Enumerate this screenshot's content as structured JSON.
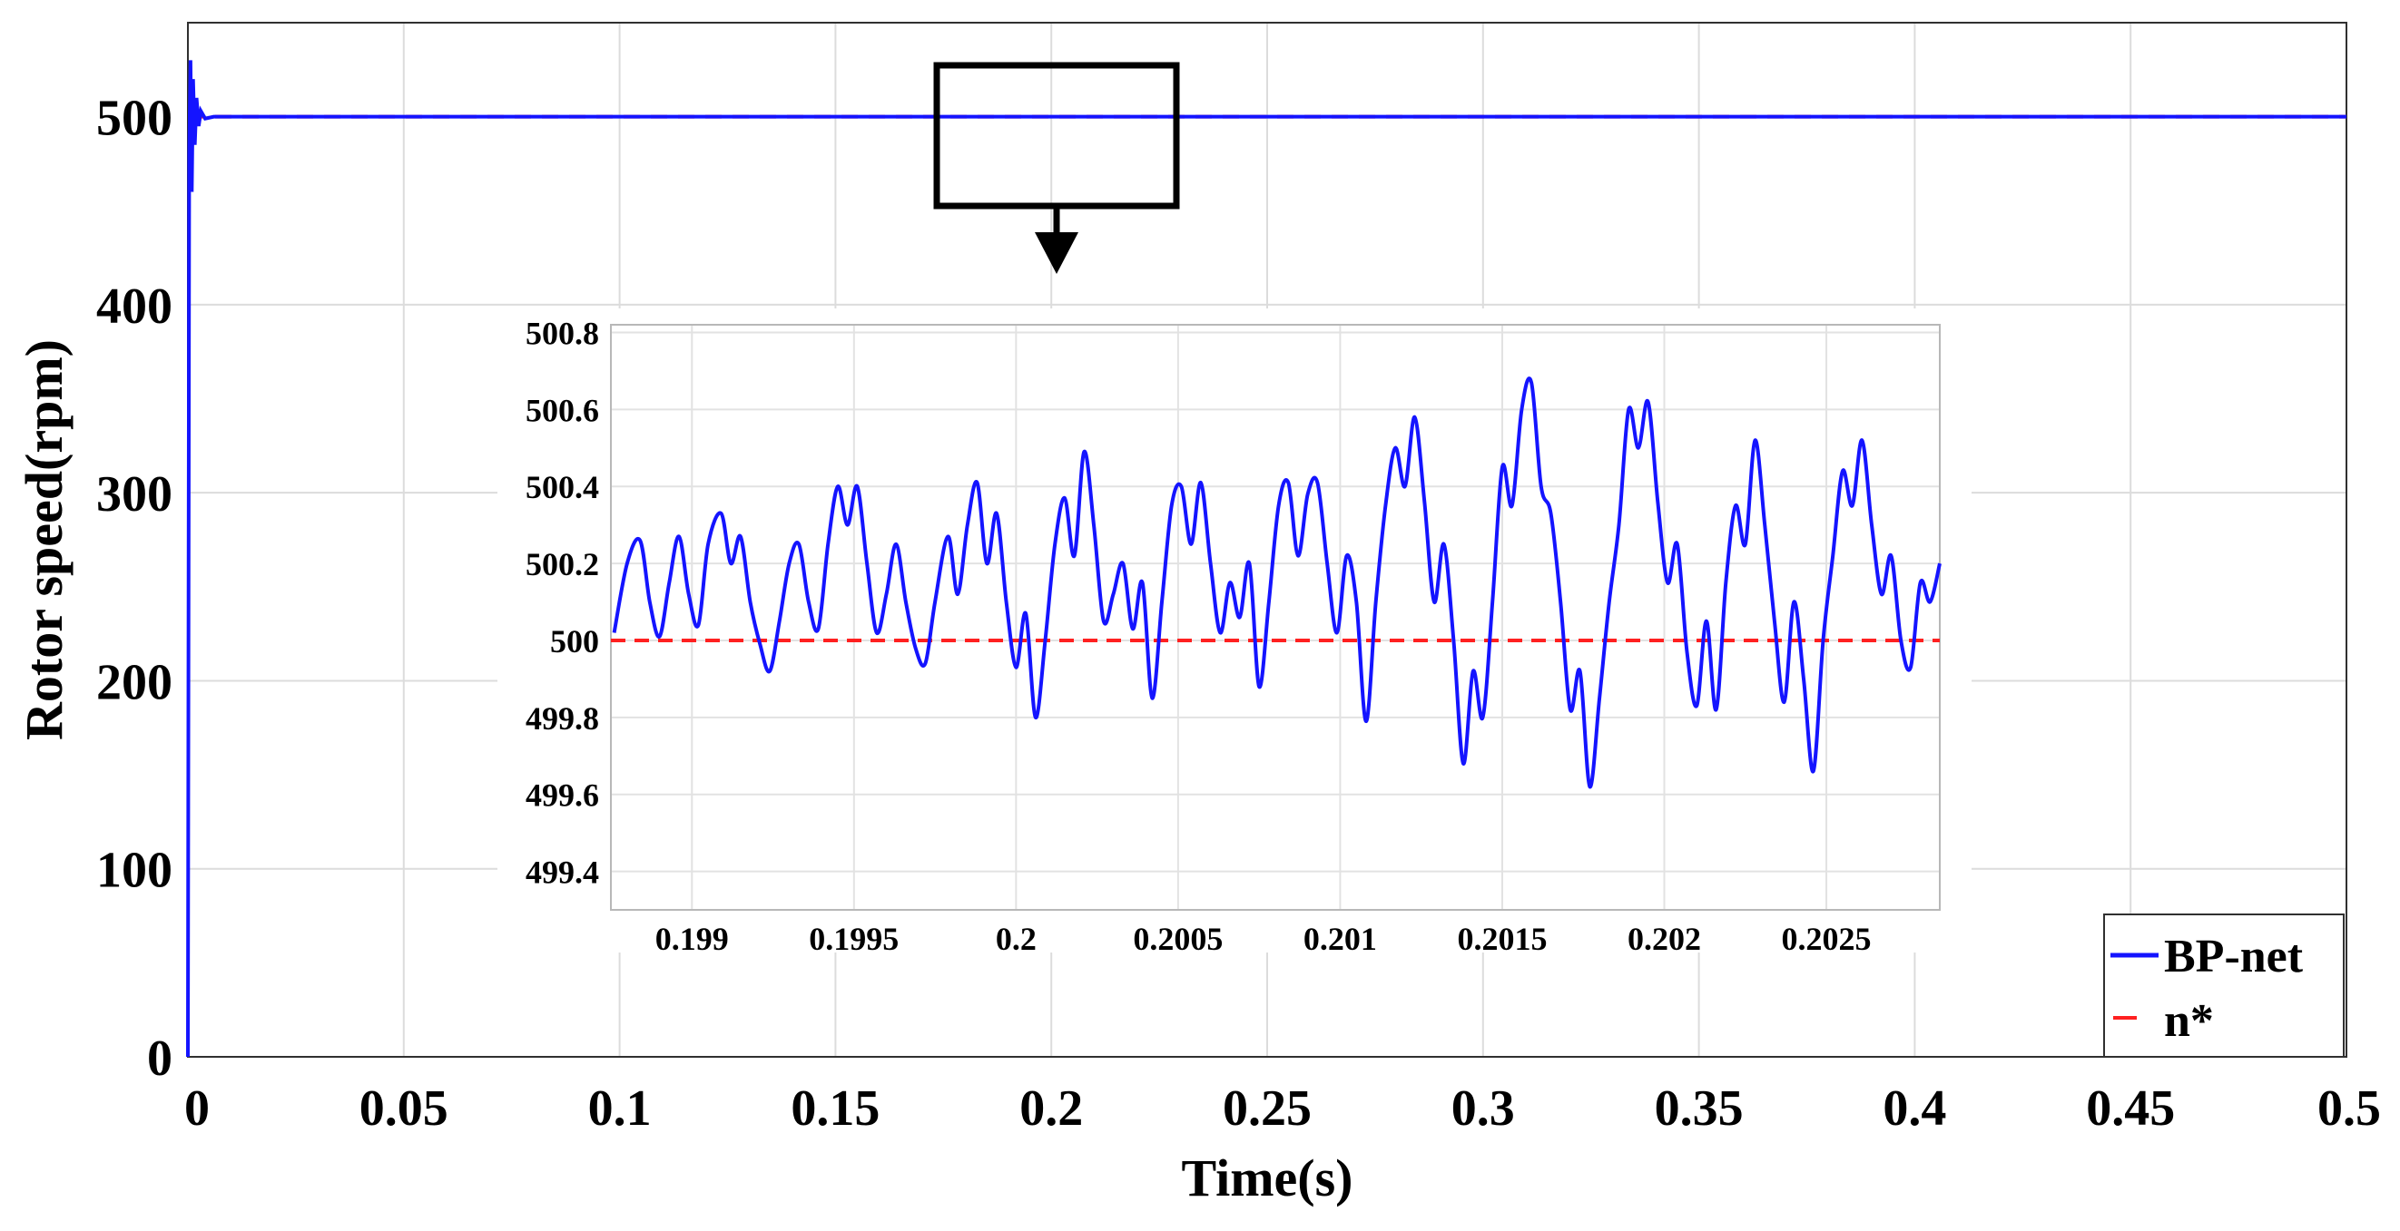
{
  "chart_data": {
    "type": "line",
    "xlabel": "Time(s)",
    "ylabel": "Rotor speed(rpm)",
    "xlim": [
      0,
      0.5
    ],
    "ylim": [
      0,
      550
    ],
    "x_ticks": [
      "0",
      "0.05",
      "0.1",
      "0.15",
      "0.2",
      "0.25",
      "0.3",
      "0.35",
      "0.4",
      "0.45",
      "0.5"
    ],
    "y_ticks": [
      "0",
      "100",
      "200",
      "300",
      "400",
      "500"
    ],
    "grid": true,
    "legend_position": "bottom-right",
    "colors": {
      "bp_net": "#1414ff",
      "reference": "#ff2020"
    },
    "series": [
      {
        "name": "BP-net",
        "style": "solid",
        "points": [
          [
            0,
            0
          ],
          [
            0.0003,
            480
          ],
          [
            0.0006,
            530
          ],
          [
            0.0009,
            460
          ],
          [
            0.0012,
            520
          ],
          [
            0.0016,
            485
          ],
          [
            0.002,
            510
          ],
          [
            0.0025,
            495
          ],
          [
            0.003,
            503
          ],
          [
            0.004,
            499
          ],
          [
            0.006,
            500
          ],
          [
            0.5,
            500
          ]
        ]
      },
      {
        "name": "n*",
        "style": "dashed",
        "points": [
          [
            0,
            500
          ],
          [
            0.5,
            500
          ]
        ]
      }
    ],
    "inset": {
      "xlim": [
        0.19875,
        0.20285
      ],
      "ylim": [
        499.3,
        500.82
      ],
      "x_ticks": [
        "0.199",
        "0.1995",
        "0.2",
        "0.2005",
        "0.201",
        "0.2015",
        "0.202",
        "0.2025"
      ],
      "y_ticks": [
        "499.4",
        "499.6",
        "499.8",
        "500",
        "500.2",
        "500.4",
        "500.6",
        "500.8"
      ],
      "reference_value": 500,
      "bp_net_points": [
        [
          0.19876,
          500.02
        ],
        [
          0.1988,
          500.2
        ],
        [
          0.19884,
          500.26
        ],
        [
          0.19887,
          500.1
        ],
        [
          0.1989,
          500.01
        ],
        [
          0.19893,
          500.15
        ],
        [
          0.19896,
          500.27
        ],
        [
          0.19899,
          500.12
        ],
        [
          0.19902,
          500.04
        ],
        [
          0.19905,
          500.25
        ],
        [
          0.19909,
          500.33
        ],
        [
          0.19912,
          500.2
        ],
        [
          0.19915,
          500.27
        ],
        [
          0.19918,
          500.1
        ],
        [
          0.19921,
          499.99
        ],
        [
          0.19924,
          499.92
        ],
        [
          0.19927,
          500.05
        ],
        [
          0.1993,
          500.2
        ],
        [
          0.19933,
          500.25
        ],
        [
          0.19936,
          500.1
        ],
        [
          0.19939,
          500.03
        ],
        [
          0.19942,
          500.25
        ],
        [
          0.19945,
          500.4
        ],
        [
          0.19948,
          500.3
        ],
        [
          0.19951,
          500.4
        ],
        [
          0.19954,
          500.2
        ],
        [
          0.19957,
          500.02
        ],
        [
          0.1996,
          500.12
        ],
        [
          0.19963,
          500.25
        ],
        [
          0.19966,
          500.1
        ],
        [
          0.19969,
          499.98
        ],
        [
          0.19972,
          499.94
        ],
        [
          0.19975,
          500.1
        ],
        [
          0.19979,
          500.27
        ],
        [
          0.19982,
          500.12
        ],
        [
          0.19985,
          500.3
        ],
        [
          0.19988,
          500.41
        ],
        [
          0.19991,
          500.2
        ],
        [
          0.19994,
          500.33
        ],
        [
          0.19997,
          500.1
        ],
        [
          0.2,
          499.93
        ],
        [
          0.20003,
          500.07
        ],
        [
          0.20006,
          499.8
        ],
        [
          0.20009,
          500.0
        ],
        [
          0.20012,
          500.25
        ],
        [
          0.20015,
          500.37
        ],
        [
          0.20018,
          500.22
        ],
        [
          0.20021,
          500.49
        ],
        [
          0.20024,
          500.3
        ],
        [
          0.20027,
          500.05
        ],
        [
          0.2003,
          500.12
        ],
        [
          0.20033,
          500.2
        ],
        [
          0.20036,
          500.03
        ],
        [
          0.20039,
          500.15
        ],
        [
          0.20042,
          499.85
        ],
        [
          0.20045,
          500.1
        ],
        [
          0.20048,
          500.35
        ],
        [
          0.20051,
          500.4
        ],
        [
          0.20054,
          500.25
        ],
        [
          0.20057,
          500.41
        ],
        [
          0.2006,
          500.2
        ],
        [
          0.20063,
          500.02
        ],
        [
          0.20066,
          500.15
        ],
        [
          0.20069,
          500.06
        ],
        [
          0.20072,
          500.2
        ],
        [
          0.20075,
          499.88
        ],
        [
          0.20078,
          500.1
        ],
        [
          0.20081,
          500.35
        ],
        [
          0.20084,
          500.41
        ],
        [
          0.20087,
          500.22
        ],
        [
          0.2009,
          500.38
        ],
        [
          0.20093,
          500.41
        ],
        [
          0.20096,
          500.2
        ],
        [
          0.20099,
          500.02
        ],
        [
          0.20102,
          500.22
        ],
        [
          0.20105,
          500.1
        ],
        [
          0.20108,
          499.79
        ],
        [
          0.20111,
          500.1
        ],
        [
          0.20114,
          500.35
        ],
        [
          0.20117,
          500.5
        ],
        [
          0.2012,
          500.4
        ],
        [
          0.20123,
          500.58
        ],
        [
          0.20126,
          500.36
        ],
        [
          0.20129,
          500.1
        ],
        [
          0.20132,
          500.25
        ],
        [
          0.20135,
          500.0
        ],
        [
          0.20138,
          499.68
        ],
        [
          0.20141,
          499.92
        ],
        [
          0.20144,
          499.8
        ],
        [
          0.20147,
          500.1
        ],
        [
          0.2015,
          500.45
        ],
        [
          0.20153,
          500.35
        ],
        [
          0.20156,
          500.6
        ],
        [
          0.20159,
          500.67
        ],
        [
          0.20162,
          500.4
        ],
        [
          0.20165,
          500.33
        ],
        [
          0.20168,
          500.1
        ],
        [
          0.20171,
          499.82
        ],
        [
          0.20174,
          499.92
        ],
        [
          0.20177,
          499.62
        ],
        [
          0.2018,
          499.85
        ],
        [
          0.20183,
          500.1
        ],
        [
          0.20186,
          500.3
        ],
        [
          0.20189,
          500.6
        ],
        [
          0.20192,
          500.5
        ],
        [
          0.20195,
          500.62
        ],
        [
          0.20198,
          500.36
        ],
        [
          0.20201,
          500.15
        ],
        [
          0.20204,
          500.25
        ],
        [
          0.20207,
          499.97
        ],
        [
          0.2021,
          499.83
        ],
        [
          0.20213,
          500.05
        ],
        [
          0.20216,
          499.82
        ],
        [
          0.20219,
          500.15
        ],
        [
          0.20222,
          500.35
        ],
        [
          0.20225,
          500.25
        ],
        [
          0.20228,
          500.52
        ],
        [
          0.20231,
          500.3
        ],
        [
          0.20234,
          500.05
        ],
        [
          0.20237,
          499.84
        ],
        [
          0.2024,
          500.1
        ],
        [
          0.20243,
          499.9
        ],
        [
          0.20246,
          499.66
        ],
        [
          0.20249,
          500.0
        ],
        [
          0.20252,
          500.22
        ],
        [
          0.20255,
          500.44
        ],
        [
          0.20258,
          500.35
        ],
        [
          0.20261,
          500.52
        ],
        [
          0.20264,
          500.3
        ],
        [
          0.20267,
          500.12
        ],
        [
          0.2027,
          500.22
        ],
        [
          0.20273,
          500.0
        ],
        [
          0.20276,
          499.93
        ],
        [
          0.20279,
          500.15
        ],
        [
          0.20282,
          500.1
        ],
        [
          0.20285,
          500.2
        ]
      ]
    }
  },
  "legend": {
    "entries": [
      {
        "label": "BP-net"
      },
      {
        "label": "n*"
      }
    ]
  }
}
